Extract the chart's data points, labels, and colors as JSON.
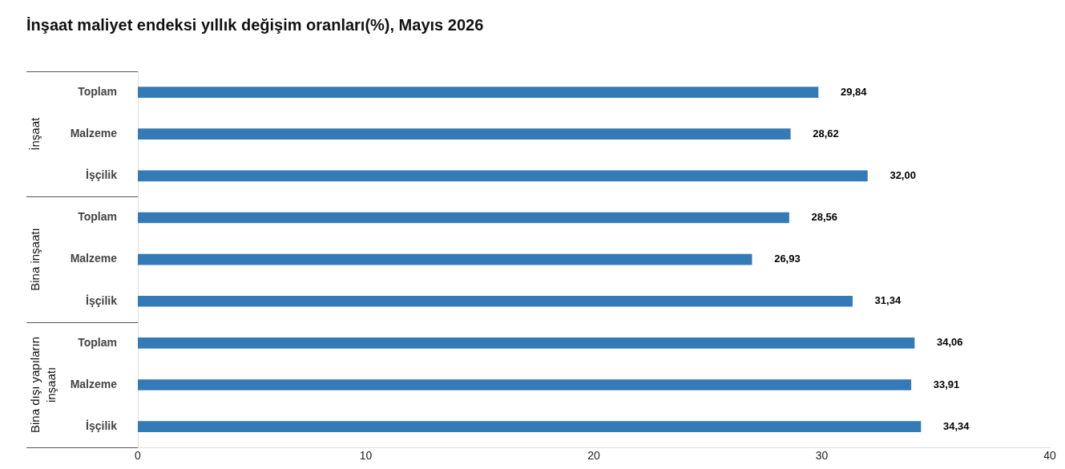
{
  "chart_data": {
    "type": "bar",
    "orientation": "horizontal",
    "title": "İnşaat maliyet endeksi yıllık değişim oranları(%), Mayıs 2026",
    "categories": [
      "Toplam",
      "Malzeme",
      "İşçilik",
      "Toplam",
      "Malzeme",
      "İşçilik",
      "Toplam",
      "Malzeme",
      "İşçilik"
    ],
    "values": [
      29.84,
      28.62,
      32.0,
      28.56,
      26.93,
      31.34,
      34.06,
      33.91,
      34.34
    ],
    "color": "#337ab7",
    "xlim": [
      0,
      40
    ],
    "xticks": [
      0,
      10,
      20,
      30,
      40
    ],
    "value_labels": [
      "29,84",
      "28,62",
      "32,00",
      "28,56",
      "26,93",
      "31,34",
      "34,06",
      "33,91",
      "34,34"
    ],
    "grid": false,
    "legend": false,
    "annotations": [
      "İnşaat",
      "Bina inşaatı",
      "Bina dışı yapıların inşaatı"
    ]
  }
}
